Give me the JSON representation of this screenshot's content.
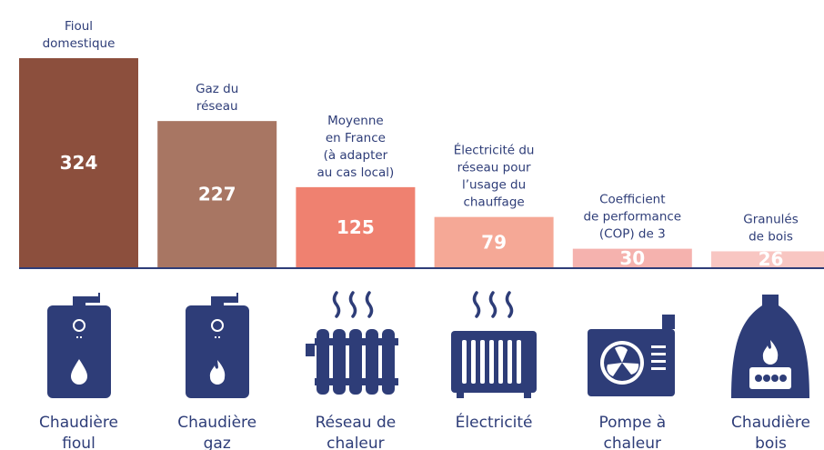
{
  "chart_data": {
    "type": "bar",
    "categories": [
      [
        "Chaudière",
        "fioul"
      ],
      [
        "Chaudière",
        "gaz"
      ],
      [
        "Réseau de",
        "chaleur"
      ],
      [
        "Électricité"
      ],
      [
        "Pompe à",
        "chaleur"
      ],
      [
        "Chaudière",
        "bois"
      ]
    ],
    "annotations": [
      [
        "Fioul",
        "domestique"
      ],
      [
        "Gaz du",
        "réseau"
      ],
      [
        "Moyenne",
        "en France",
        "(à adapter",
        "au cas local)"
      ],
      [
        "Électricité du",
        "réseau pour",
        "l’usage du",
        "chauffage"
      ],
      [
        "Coefficient",
        "de performance",
        "(COP) de 3"
      ],
      [
        "Granulés",
        "de bois"
      ]
    ],
    "values": [
      324,
      227,
      125,
      79,
      30,
      26
    ],
    "colors": [
      "#8c4f3d",
      "#a87663",
      "#ef8170",
      "#f5a896",
      "#f5b2ae",
      "#f8c6c2"
    ]
  }
}
